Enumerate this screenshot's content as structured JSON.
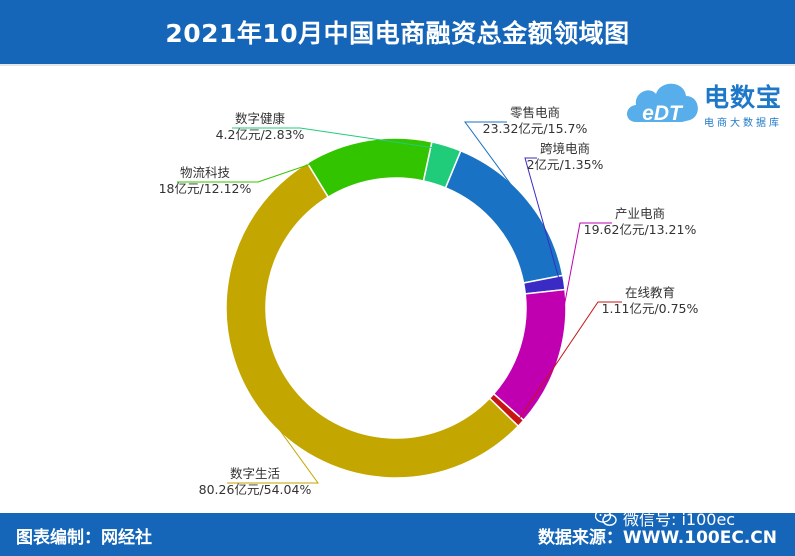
{
  "header": {
    "title": "2021年10月中国电商融资总金额领域图"
  },
  "logo": {
    "title": "电数宝",
    "subtitle": "电商大数据库",
    "mark": "eDT"
  },
  "footer": {
    "left": "图表编制：网经社",
    "right": "数据来源：WWW.100EC.CN",
    "wechat": "微信号: i100ec"
  },
  "colors": {
    "header_bg": "#1565b8",
    "零售电商": "#1a72c4",
    "跨境电商": "#3a2bc4",
    "产业电商": "#c000b0",
    "在线教育": "#c81414",
    "数字生活": "#c4a600",
    "物流科技": "#33c400",
    "数字健康": "#20cc7a"
  },
  "chart_data": {
    "type": "pie",
    "donut": true,
    "title": "2021年10月中国电商融资总金额领域图",
    "unit": "亿元",
    "slices": [
      {
        "name": "零售电商",
        "value": 23.32,
        "percent": 15.7,
        "label_line1": "零售电商",
        "label_line2": "23.32亿元/15.7%",
        "color": "#1a72c4"
      },
      {
        "name": "跨境电商",
        "value": 2,
        "percent": 1.35,
        "label_line1": "跨境电商",
        "label_line2": "2亿元/1.35%",
        "color": "#3a2bc4"
      },
      {
        "name": "产业电商",
        "value": 19.62,
        "percent": 13.21,
        "label_line1": "产业电商",
        "label_line2": "19.62亿元/13.21%",
        "color": "#c000b0"
      },
      {
        "name": "在线教育",
        "value": 1.11,
        "percent": 0.75,
        "label_line1": "在线教育",
        "label_line2": "1.11亿元/0.75%",
        "color": "#c81414"
      },
      {
        "name": "数字生活",
        "value": 80.26,
        "percent": 54.04,
        "label_line1": "数字生活",
        "label_line2": "80.26亿元/54.04%",
        "color": "#c4a600"
      },
      {
        "name": "物流科技",
        "value": 18,
        "percent": 12.12,
        "label_line1": "物流科技",
        "label_line2": "18亿元/12.12%",
        "color": "#33c400"
      },
      {
        "name": "数字健康",
        "value": 4.2,
        "percent": 2.83,
        "label_line1": "数字健康",
        "label_line2": "4.2亿元/2.83%",
        "color": "#20cc7a"
      }
    ]
  }
}
